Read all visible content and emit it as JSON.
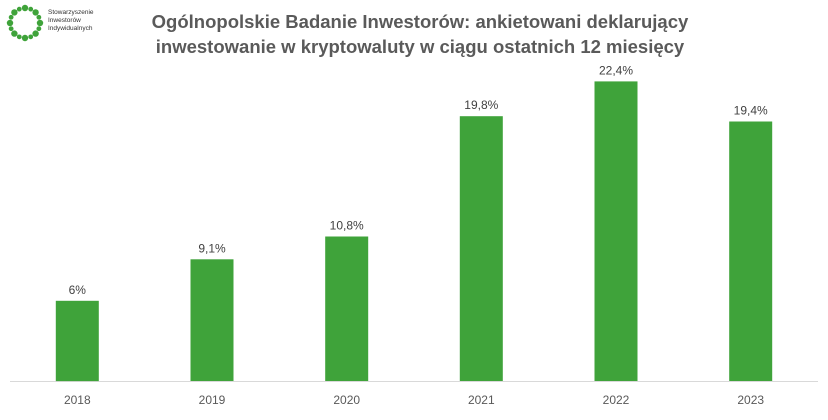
{
  "logo": {
    "lines": [
      "Stowarzyszenie",
      "Inwestorów",
      "Indywidualnych"
    ],
    "color": "#3fa33a"
  },
  "title_lines": [
    "Ogólnopolskie Badanie Inwestorów: ankietowani deklarujący",
    "inwestowanie w kryptowaluty w ciągu ostatnich 12 miesięcy"
  ],
  "chart_data": {
    "type": "bar",
    "title": "Ogólnopolskie Badanie Inwestorów: ankietowani deklarujący inwestowanie w kryptowaluty w ciągu ostatnich 12 miesięcy",
    "categories": [
      "2018",
      "2019",
      "2020",
      "2021",
      "2022",
      "2023"
    ],
    "values": [
      6,
      9.1,
      10.8,
      19.8,
      22.4,
      19.4
    ],
    "data_labels": [
      "6%",
      "9,1%",
      "10,8%",
      "19,8%",
      "22,4%",
      "19,4%"
    ],
    "xlabel": "",
    "ylabel": "",
    "unit": "%",
    "ylim": [
      0,
      24
    ],
    "grid": false,
    "y_axis_visible": false,
    "bar_color": "#3fa33a",
    "axis_color": "#d9d9d9"
  }
}
